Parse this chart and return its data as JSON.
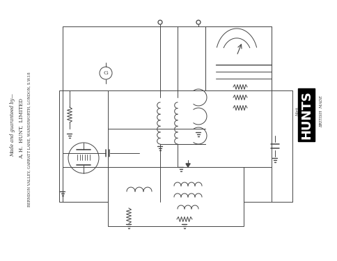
{
  "background_color": "#ffffff",
  "line_color": "#444444",
  "text_color": "#333333",
  "title": "HUNTS",
  "left_text_lines": [
    "Made and guaranteed by—",
    "A. H.  HUNT,  LIMITED",
    "BERNDON VALLEY, GARRATT LANE, WANDSWORTH, LONDON, S.W.18"
  ],
  "figsize": [
    4.85,
    3.75
  ],
  "dpi": 100
}
